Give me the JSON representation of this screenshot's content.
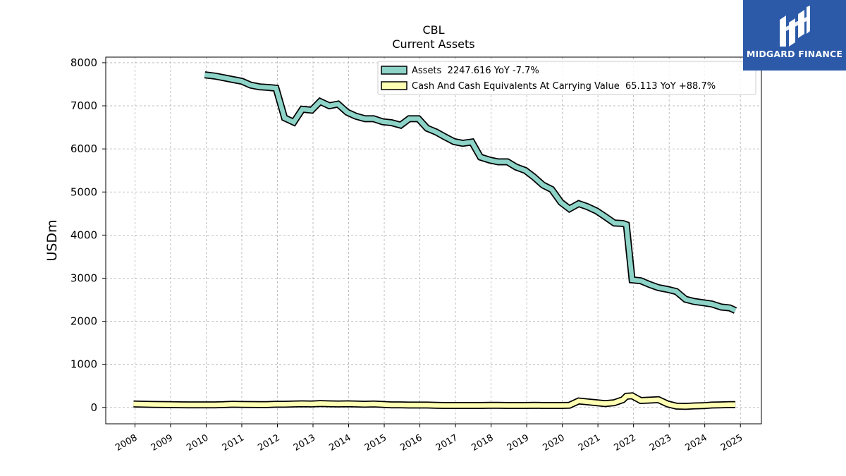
{
  "chart_data": {
    "type": "line",
    "title": "CBL",
    "subtitle": "Current  Assets",
    "ylabel": "USDm",
    "xlabel": "",
    "ylim": [
      -380,
      8130
    ],
    "xlim": [
      2007.18,
      2025.59
    ],
    "yticks": [
      0,
      1000,
      2000,
      3000,
      4000,
      5000,
      6000,
      7000,
      8000
    ],
    "xticks": [
      2008,
      2009,
      2010,
      2011,
      2012,
      2013,
      2014,
      2015,
      2016,
      2017,
      2018,
      2019,
      2020,
      2021,
      2022,
      2023,
      2024,
      2025
    ],
    "grid": true,
    "legend_position": "top-right",
    "series": [
      {
        "name": "Assets  2247.616 YoY -7.7%",
        "color": "#8dd3c7",
        "x": [
          2009.96,
          2010.25,
          2010.5,
          2010.75,
          2011.0,
          2011.25,
          2011.5,
          2011.7,
          2011.96,
          2012.2,
          2012.46,
          2012.7,
          2012.96,
          2013.2,
          2013.46,
          2013.7,
          2013.96,
          2014.2,
          2014.46,
          2014.7,
          2014.96,
          2015.2,
          2015.46,
          2015.7,
          2015.96,
          2016.2,
          2016.46,
          2016.7,
          2016.96,
          2017.2,
          2017.46,
          2017.7,
          2017.96,
          2018.2,
          2018.46,
          2018.7,
          2018.96,
          2019.2,
          2019.46,
          2019.7,
          2019.96,
          2020.2,
          2020.46,
          2020.7,
          2020.96,
          2021.2,
          2021.46,
          2021.7,
          2021.8,
          2021.96,
          2022.2,
          2022.46,
          2022.7,
          2022.96,
          2023.2,
          2023.46,
          2023.7,
          2023.96,
          2024.2,
          2024.46,
          2024.7,
          2024.86
        ],
        "values": [
          7720,
          7690,
          7650,
          7610,
          7570,
          7480,
          7440,
          7430,
          7410,
          6720,
          6620,
          6920,
          6900,
          7100,
          7000,
          7040,
          6850,
          6760,
          6700,
          6700,
          6630,
          6610,
          6550,
          6700,
          6700,
          6480,
          6390,
          6280,
          6170,
          6130,
          6160,
          5810,
          5740,
          5700,
          5700,
          5580,
          5500,
          5350,
          5160,
          5060,
          4760,
          4610,
          4730,
          4660,
          4560,
          4430,
          4280,
          4270,
          4240,
          2960,
          2940,
          2850,
          2780,
          2740,
          2690,
          2510,
          2460,
          2430,
          2400,
          2330,
          2310,
          2250
        ]
      },
      {
        "name": "Cash And Cash Equivalents At Carrying Value  65.113 YoY +88.7%",
        "color": "#ffffb3",
        "x": [
          2007.96,
          2008.5,
          2008.96,
          2009.5,
          2009.96,
          2010.25,
          2010.5,
          2010.75,
          2010.96,
          2011.5,
          2011.7,
          2011.96,
          2012.2,
          2012.46,
          2012.7,
          2012.96,
          2013.2,
          2013.46,
          2013.7,
          2013.96,
          2014.2,
          2014.46,
          2014.7,
          2014.96,
          2015.2,
          2015.46,
          2015.7,
          2015.96,
          2016.2,
          2016.46,
          2016.7,
          2016.96,
          2017.2,
          2017.46,
          2017.7,
          2017.96,
          2018.2,
          2018.46,
          2018.7,
          2018.96,
          2019.2,
          2019.46,
          2019.7,
          2019.96,
          2020.2,
          2020.46,
          2020.7,
          2020.96,
          2021.2,
          2021.46,
          2021.7,
          2021.8,
          2021.96,
          2022.2,
          2022.46,
          2022.7,
          2022.96,
          2023.2,
          2023.46,
          2023.7,
          2023.96,
          2024.2,
          2024.46,
          2024.7,
          2024.86
        ],
        "values": [
          80,
          70,
          65,
          60,
          60,
          60,
          65,
          75,
          70,
          65,
          65,
          75,
          75,
          80,
          85,
          80,
          90,
          85,
          80,
          85,
          80,
          75,
          80,
          70,
          60,
          60,
          55,
          55,
          55,
          50,
          45,
          45,
          45,
          45,
          45,
          50,
          50,
          45,
          45,
          45,
          50,
          45,
          45,
          45,
          50,
          150,
          130,
          110,
          90,
          110,
          180,
          260,
          270,
          160,
          170,
          180,
          80,
          30,
          25,
          35,
          40,
          55,
          60,
          65,
          65
        ]
      }
    ]
  },
  "logo": {
    "name": "MIDGARD FINANCE",
    "color": "#2c5aa8"
  }
}
